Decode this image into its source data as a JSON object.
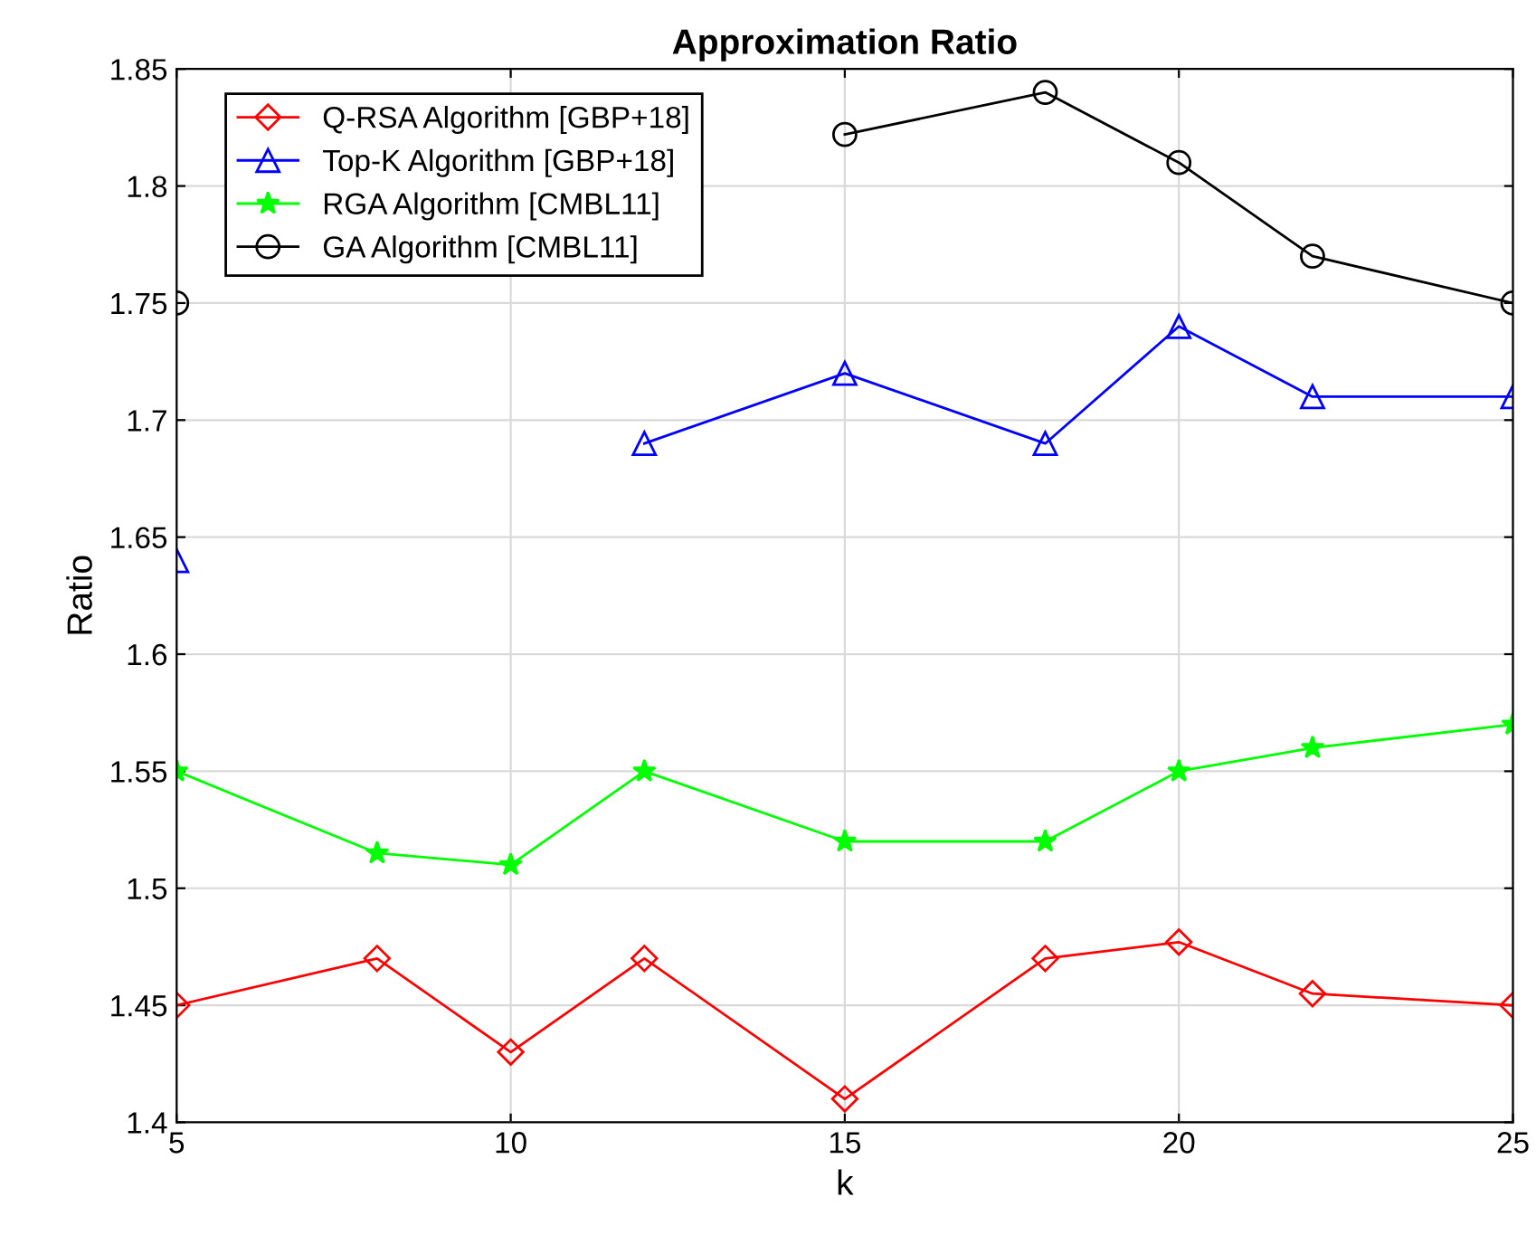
{
  "chart_data": {
    "type": "line",
    "title": "Approximation Ratio",
    "xlabel": "k",
    "ylabel": "Ratio",
    "x": [
      5,
      8,
      10,
      12,
      15,
      18,
      20,
      22,
      25
    ],
    "series": [
      {
        "name": "Q-RSA Algorithm [GBP+18]",
        "color": "#ff0000",
        "marker": "diamond",
        "values": [
          1.45,
          1.47,
          1.43,
          1.47,
          1.41,
          1.47,
          1.477,
          1.455,
          1.45
        ]
      },
      {
        "name": "Top-K Algorithm [GBP+18]",
        "color": "#0000ff",
        "marker": "triangle",
        "values": [
          1.64,
          null,
          null,
          1.69,
          1.72,
          1.69,
          1.74,
          1.71,
          1.71
        ]
      },
      {
        "name": "RGA Algorithm [CMBL11]",
        "color": "#00ff00",
        "marker": "star",
        "values": [
          1.55,
          1.515,
          1.51,
          1.55,
          1.52,
          1.52,
          1.55,
          1.56,
          1.57
        ]
      },
      {
        "name": "GA Algorithm [CMBL11]",
        "color": "#000000",
        "marker": "circle",
        "values": [
          1.75,
          null,
          null,
          null,
          1.822,
          1.84,
          1.81,
          1.77,
          1.75
        ]
      }
    ],
    "xlim": [
      5,
      25
    ],
    "ylim": [
      1.4,
      1.85
    ],
    "xticks": [
      5,
      10,
      15,
      20,
      25
    ],
    "yticks": [
      1.4,
      1.45,
      1.5,
      1.55,
      1.6,
      1.65,
      1.7,
      1.75,
      1.8,
      1.85
    ],
    "grid": true,
    "legend": "top left",
    "line_style": "solid"
  }
}
